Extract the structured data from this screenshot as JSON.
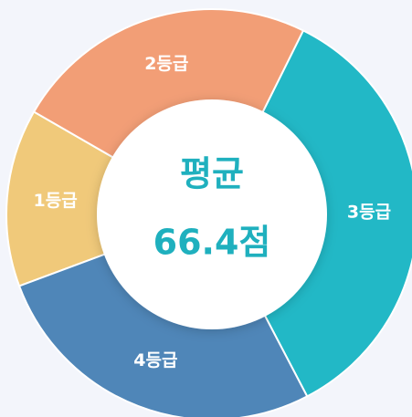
{
  "chart_data": {
    "type": "donut",
    "center_title": "평균",
    "center_value": "66.4점",
    "categories": [
      "1등급",
      "2등급",
      "3등급",
      "4등급"
    ],
    "values": [
      14,
      24,
      35,
      27
    ],
    "colors": [
      "#f0c97a",
      "#f29e76",
      "#22b8c6",
      "#4f86b8"
    ]
  }
}
